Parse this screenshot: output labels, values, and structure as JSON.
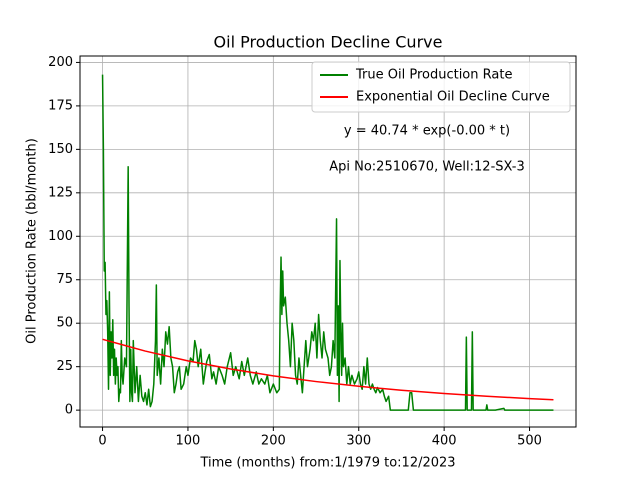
{
  "chart_data": {
    "type": "line",
    "title": "Oil Production Decline Curve",
    "xlabel": "Time (months) from:1/1979 to:12/2023",
    "ylabel": "Oil Production Rate (bbl/month)",
    "annotations": [
      "y = 40.74 * exp(-0.00 * t)",
      "Api No:2510670, Well:12-SX-3"
    ],
    "xlim": [
      -26.4,
      554.4
    ],
    "ylim": [
      -9.7,
      203.7
    ],
    "xticks": [
      0,
      100,
      200,
      300,
      400,
      500
    ],
    "yticks": [
      0,
      25,
      50,
      75,
      100,
      125,
      150,
      175,
      200
    ],
    "grid": true,
    "legend": "upper right",
    "series": [
      {
        "name": "True Oil Production Rate",
        "color": "#008000",
        "x": [
          0,
          1,
          2,
          3,
          4,
          5,
          6,
          7,
          8,
          9,
          10,
          11,
          12,
          13,
          14,
          15,
          16,
          17,
          18,
          19,
          20,
          21,
          22,
          23,
          24,
          26,
          28,
          30,
          31,
          32,
          33,
          34,
          35,
          36,
          38,
          40,
          42,
          44,
          46,
          48,
          50,
          52,
          54,
          56,
          58,
          60,
          62,
          63,
          64,
          66,
          68,
          70,
          72,
          74,
          76,
          78,
          80,
          82,
          84,
          86,
          88,
          90,
          92,
          95,
          98,
          100,
          103,
          106,
          108,
          110,
          112,
          115,
          118,
          120,
          122,
          125,
          128,
          130,
          133,
          136,
          140,
          143,
          146,
          150,
          153,
          156,
          160,
          163,
          166,
          170,
          173,
          176,
          180,
          183,
          186,
          190,
          193,
          196,
          200,
          204,
          207,
          208,
          209,
          210,
          211,
          212,
          214,
          216,
          218,
          220,
          222,
          224,
          226,
          228,
          230,
          232,
          234,
          236,
          238,
          240,
          243,
          245,
          247,
          249,
          251,
          253,
          255,
          257,
          259,
          261,
          264,
          266,
          268,
          270,
          272,
          274,
          275,
          276,
          277,
          278,
          279,
          280,
          281,
          282,
          284,
          286,
          288,
          290,
          292,
          295,
          298,
          300,
          302,
          304,
          306,
          308,
          310,
          312,
          314,
          316,
          318,
          320,
          322,
          325,
          328,
          330,
          332,
          335,
          337,
          340,
          345,
          350,
          355,
          358,
          360,
          362,
          364,
          380,
          400,
          420,
          425,
          426,
          427,
          430,
          432,
          433,
          434,
          440,
          449,
          450,
          451,
          460,
          470,
          471,
          500,
          528
        ],
        "values": [
          193,
          150,
          80,
          85,
          55,
          63,
          45,
          12,
          68,
          20,
          45,
          30,
          52,
          20,
          35,
          15,
          30,
          20,
          25,
          5,
          12,
          10,
          40,
          20,
          15,
          30,
          25,
          140,
          60,
          5,
          35,
          10,
          5,
          40,
          10,
          25,
          5,
          20,
          8,
          5,
          10,
          3,
          12,
          2,
          5,
          15,
          40,
          72,
          20,
          30,
          15,
          35,
          25,
          45,
          38,
          48,
          30,
          25,
          10,
          15,
          22,
          25,
          12,
          15,
          25,
          20,
          30,
          28,
          40,
          35,
          25,
          35,
          15,
          22,
          28,
          32,
          18,
          22,
          15,
          25,
          20,
          15,
          25,
          33,
          20,
          25,
          18,
          28,
          20,
          30,
          20,
          15,
          22,
          15,
          18,
          15,
          20,
          10,
          15,
          10,
          12,
          60,
          88,
          55,
          80,
          60,
          65,
          50,
          40,
          25,
          50,
          40,
          20,
          15,
          30,
          20,
          10,
          25,
          40,
          25,
          35,
          45,
          40,
          50,
          30,
          55,
          40,
          30,
          45,
          35,
          30,
          20,
          25,
          40,
          30,
          110,
          20,
          60,
          5,
          86,
          45,
          20,
          50,
          25,
          30,
          15,
          25,
          15,
          20,
          15,
          18,
          22,
          15,
          12,
          25,
          15,
          30,
          15,
          12,
          15,
          12,
          10,
          13,
          10,
          12,
          8,
          5,
          8,
          0,
          0,
          0,
          0,
          0,
          0,
          10,
          10,
          0,
          0,
          0,
          0,
          0,
          42,
          0,
          0,
          0,
          45,
          0,
          0,
          0,
          3,
          0,
          0,
          1,
          0,
          0,
          0
        ]
      },
      {
        "name": "Exponential Oil Decline Curve",
        "color": "#ff0000",
        "x": [
          0,
          50,
          100,
          150,
          200,
          250,
          300,
          350,
          400,
          450,
          500,
          528
        ],
        "values": [
          40.74,
          33.98,
          28.34,
          23.64,
          19.71,
          16.44,
          13.71,
          11.44,
          9.54,
          7.96,
          6.64,
          5.99
        ]
      }
    ]
  }
}
